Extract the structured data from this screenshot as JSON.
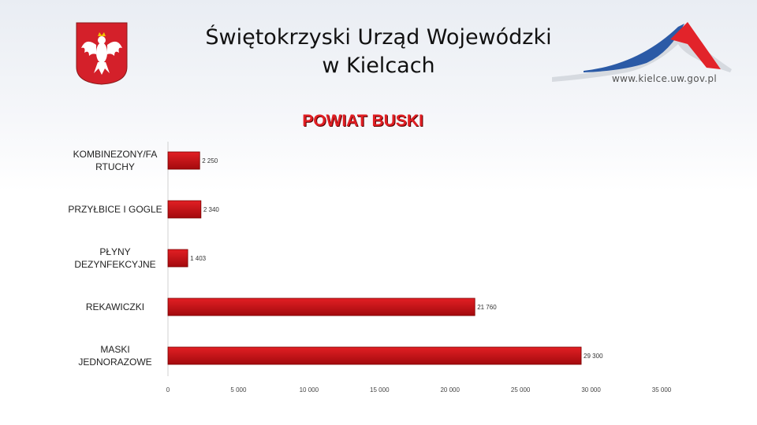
{
  "header": {
    "title_line1": "Świętokrzyski Urząd Wojewódzki",
    "title_line2": "w Kielcach",
    "website": "www.kielce.uw.gov.pl"
  },
  "colors": {
    "bar": "#e21f24",
    "bar_dark": "#a30a0e",
    "title": "#e21f24"
  },
  "chart_data": {
    "type": "bar",
    "orientation": "horizontal",
    "title": "POWIAT BUSKI",
    "categories": [
      [
        "KOMBINEZONY/FA",
        "RTUCHY"
      ],
      [
        "PRZYŁBICE I GOGLE"
      ],
      [
        "PŁYNY",
        "DEZYNFEKCYJNE"
      ],
      [
        "REKAWICZKI"
      ],
      [
        "MASKI",
        "JEDNORAZOWE"
      ]
    ],
    "values": [
      2250,
      2340,
      1403,
      21760,
      29300
    ],
    "value_labels": [
      "2 250",
      "2 340",
      "1 403",
      "21 760",
      "29 300"
    ],
    "xlim": [
      0,
      35000
    ],
    "xticks": [
      0,
      5000,
      10000,
      15000,
      20000,
      25000,
      30000,
      35000
    ],
    "xtick_labels": [
      "0",
      "5 000",
      "10 000",
      "15 000",
      "20 000",
      "25 000",
      "30 000",
      "35 000"
    ],
    "grid": false,
    "legend": "none"
  }
}
